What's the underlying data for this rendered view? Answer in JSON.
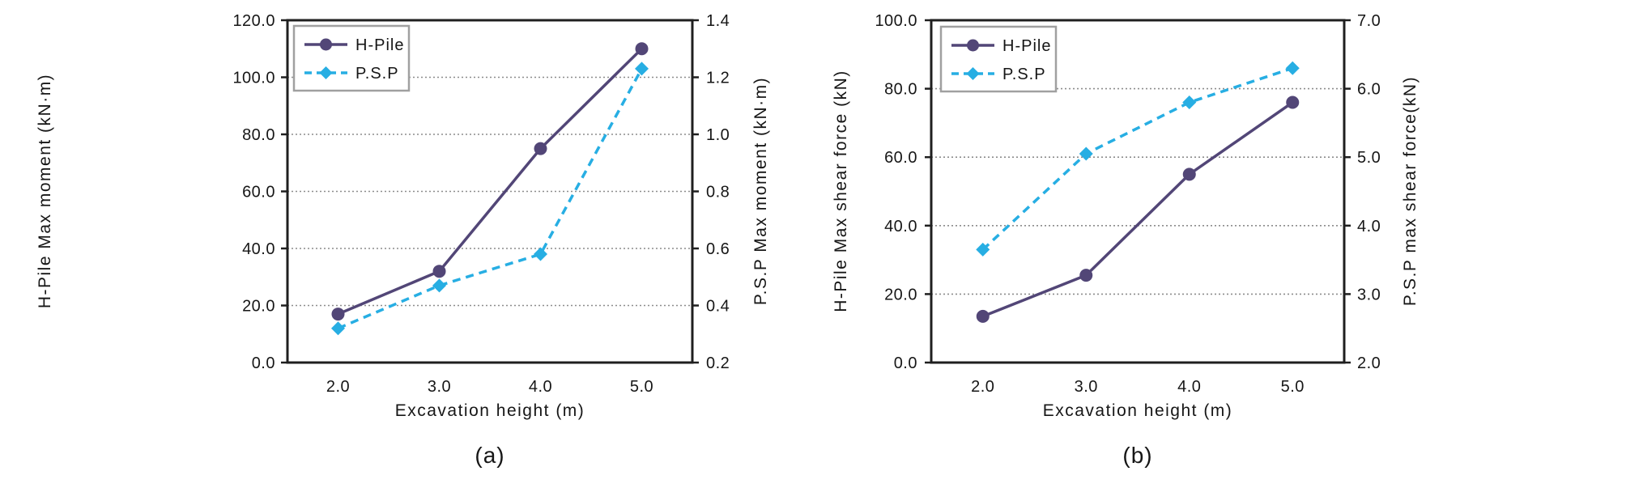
{
  "figure": {
    "background": "#ffffff",
    "text_color": "#161616",
    "frame_color": "#1f1f1f",
    "grid_color": "#8c8c8c",
    "legend_border_color": "#a0a0a0"
  },
  "chart_data": [
    {
      "type": "line",
      "caption": "(a)",
      "legend_position": "top-left",
      "grid": "horizontal-dotted",
      "x_axis": {
        "label": "Excavation height (m)",
        "ticks": [
          "2.0",
          "3.0",
          "4.0",
          "5.0"
        ],
        "values": [
          2.0,
          3.0,
          4.0,
          5.0
        ]
      },
      "left_axis": {
        "label": "H-Pile Max moment (kN·m)",
        "min": 0,
        "max": 120,
        "step": 20,
        "ticks": [
          "120.0",
          "100.0",
          "80.0",
          "60.0",
          "40.0",
          "20.0",
          "0.0"
        ]
      },
      "right_axis": {
        "label": "P.S.P Max moment (kN·m)",
        "min": 0.2,
        "max": 1.4,
        "step": 0.2,
        "ticks": [
          "1.4",
          "1.2",
          "1.0",
          "0.8",
          "0.6",
          "0.4",
          "0.2"
        ]
      },
      "series": [
        {
          "name": "H-Pile",
          "axis": "left",
          "color": "#524677",
          "line_style": "solid",
          "marker": "circle",
          "values": [
            17,
            32,
            75,
            110
          ]
        },
        {
          "name": "P.S.P",
          "axis": "right",
          "color": "#27aee3",
          "line_style": "dashed",
          "marker": "diamond",
          "values": [
            0.32,
            0.47,
            0.58,
            1.23
          ]
        }
      ]
    },
    {
      "type": "line",
      "caption": "(b)",
      "legend_position": "top-left",
      "grid": "horizontal-dotted",
      "x_axis": {
        "label": "Excavation height (m)",
        "ticks": [
          "2.0",
          "3.0",
          "4.0",
          "5.0"
        ],
        "values": [
          2.0,
          3.0,
          4.0,
          5.0
        ]
      },
      "left_axis": {
        "label": "H-Pile Max shear force (kN)",
        "min": 0,
        "max": 100,
        "step": 20,
        "ticks": [
          "100.0",
          "80.0",
          "60.0",
          "40.0",
          "20.0",
          "0.0"
        ]
      },
      "right_axis": {
        "label": "P.S.P max shear force(kN)",
        "min": 2.0,
        "max": 7.0,
        "step": 1.0,
        "ticks": [
          "7.0",
          "6.0",
          "5.0",
          "4.0",
          "3.0",
          "2.0"
        ]
      },
      "series": [
        {
          "name": "H-Pile",
          "axis": "left",
          "color": "#524677",
          "line_style": "solid",
          "marker": "circle",
          "values": [
            13.5,
            25.5,
            55,
            76
          ]
        },
        {
          "name": "P.S.P",
          "axis": "right",
          "color": "#27aee3",
          "line_style": "dashed",
          "marker": "diamond",
          "values": [
            3.65,
            5.05,
            5.8,
            6.3
          ]
        }
      ]
    }
  ]
}
